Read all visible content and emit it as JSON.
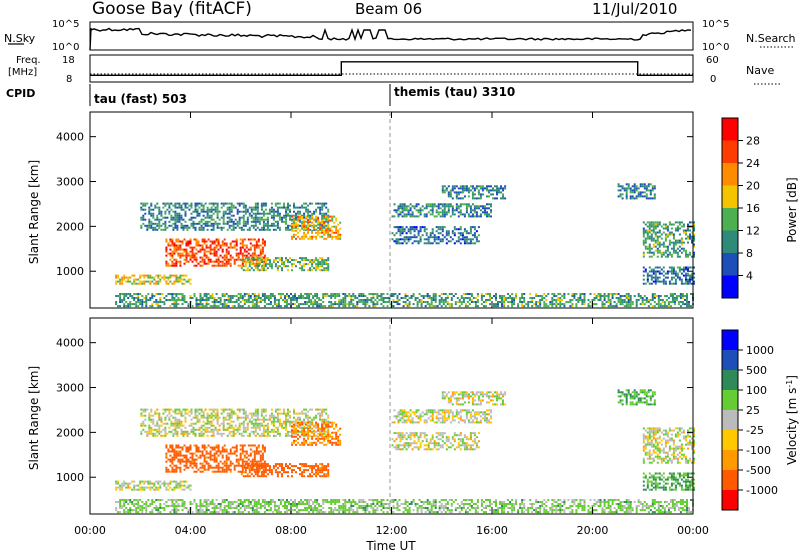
{
  "header": {
    "station": "Goose Bay (fitACF)",
    "beam": "Beam 06",
    "date": "11/Jul/2010"
  },
  "panels": {
    "nsky_label": "N.Sky",
    "nsky_ticks": [
      "10^5",
      "10^0"
    ],
    "nsearch_label": "N.Search",
    "nsearch_ticks": [
      "10^5",
      "10^0"
    ],
    "freq_label": "Freq.",
    "freq_unit": "[MHz]",
    "freq_ticks": [
      "18",
      "8"
    ],
    "nave_label": "Nave",
    "nave_ticks": [
      "60",
      "0"
    ],
    "cpid_label": "CPID",
    "cpid_modes": [
      "tau (fast) 503",
      "themis (tau) 3310"
    ]
  },
  "power_colorbar": {
    "label": "Power [dB]",
    "ticks": [
      "4",
      "8",
      "12",
      "16",
      "20",
      "24",
      "28"
    ],
    "colors": [
      "#0000ff",
      "#1e4fb8",
      "#2f8a7a",
      "#4caf50",
      "#f5c400",
      "#ff8c00",
      "#ff3c00",
      "#ff0000"
    ]
  },
  "velocity_colorbar": {
    "label": "Velocity [m s",
    "label_sup": "-1",
    "label_end": "]",
    "ticks": [
      "1000",
      "500",
      "100",
      "25",
      "-25",
      "-100",
      "-500",
      "-1000"
    ],
    "colors": [
      "#ff0000",
      "#ff5a00",
      "#ff9a00",
      "#ffc800",
      "#bbbbbb",
      "#66cc33",
      "#2f8a5a",
      "#1e4fb8",
      "#0000ff"
    ]
  },
  "chart_data": {
    "type": "heatmap",
    "xlabel": "Time UT",
    "x_ticks": [
      "00:00",
      "04:00",
      "08:00",
      "12:00",
      "16:00",
      "20:00",
      "00:00"
    ],
    "xlim_hours": [
      0,
      24
    ],
    "ylabel": "Slant Range [km]",
    "y_ticks": [
      1000,
      2000,
      3000,
      4000
    ],
    "ylim_km": [
      180,
      4550
    ],
    "nave_level_changes": [
      {
        "from_hour": 0,
        "to_hour": 10.0,
        "freq_mhz": 10.5
      },
      {
        "from_hour": 10.0,
        "to_hour": 21.8,
        "freq_mhz": 15.5
      },
      {
        "from_hour": 21.8,
        "to_hour": 24,
        "freq_mhz": 10.5
      }
    ],
    "cpid_change_hour": 12.0,
    "echo_regions": [
      {
        "t0": 2.0,
        "t1": 9.5,
        "r0": 1900,
        "r1": 2500,
        "power": 10,
        "velocity": 0
      },
      {
        "t0": 3.0,
        "t1": 7.0,
        "r0": 1100,
        "r1": 1700,
        "power": 26,
        "velocity": -150
      },
      {
        "t0": 1.0,
        "t1": 4.0,
        "r0": 700,
        "r1": 900,
        "power": 18,
        "velocity": 0
      },
      {
        "t0": 6.0,
        "t1": 9.5,
        "r0": 1000,
        "r1": 1300,
        "power": 14,
        "velocity": -150
      },
      {
        "t0": 8.0,
        "t1": 10.0,
        "r0": 1700,
        "r1": 2200,
        "power": 20,
        "velocity": -100
      },
      {
        "t0": 12.0,
        "t1": 16.0,
        "r0": 2200,
        "r1": 2500,
        "power": 10,
        "velocity": 0
      },
      {
        "t0": 12.0,
        "t1": 15.5,
        "r0": 1600,
        "r1": 2000,
        "power": 8,
        "velocity": 0
      },
      {
        "t0": 14.0,
        "t1": 16.5,
        "r0": 2600,
        "r1": 2900,
        "power": 9,
        "velocity": 0
      },
      {
        "t0": 21.0,
        "t1": 22.5,
        "r0": 2600,
        "r1": 2950,
        "power": 9,
        "velocity": 100
      },
      {
        "t0": 22.0,
        "t1": 24.0,
        "r0": 1300,
        "r1": 2100,
        "power": 12,
        "velocity": 0
      },
      {
        "t0": 22.0,
        "t1": 24.0,
        "r0": 700,
        "r1": 1100,
        "power": 8,
        "velocity": 100
      },
      {
        "t0": 1.0,
        "t1": 24.0,
        "r0": 200,
        "r1": 500,
        "power": 12,
        "velocity": 50
      }
    ]
  }
}
